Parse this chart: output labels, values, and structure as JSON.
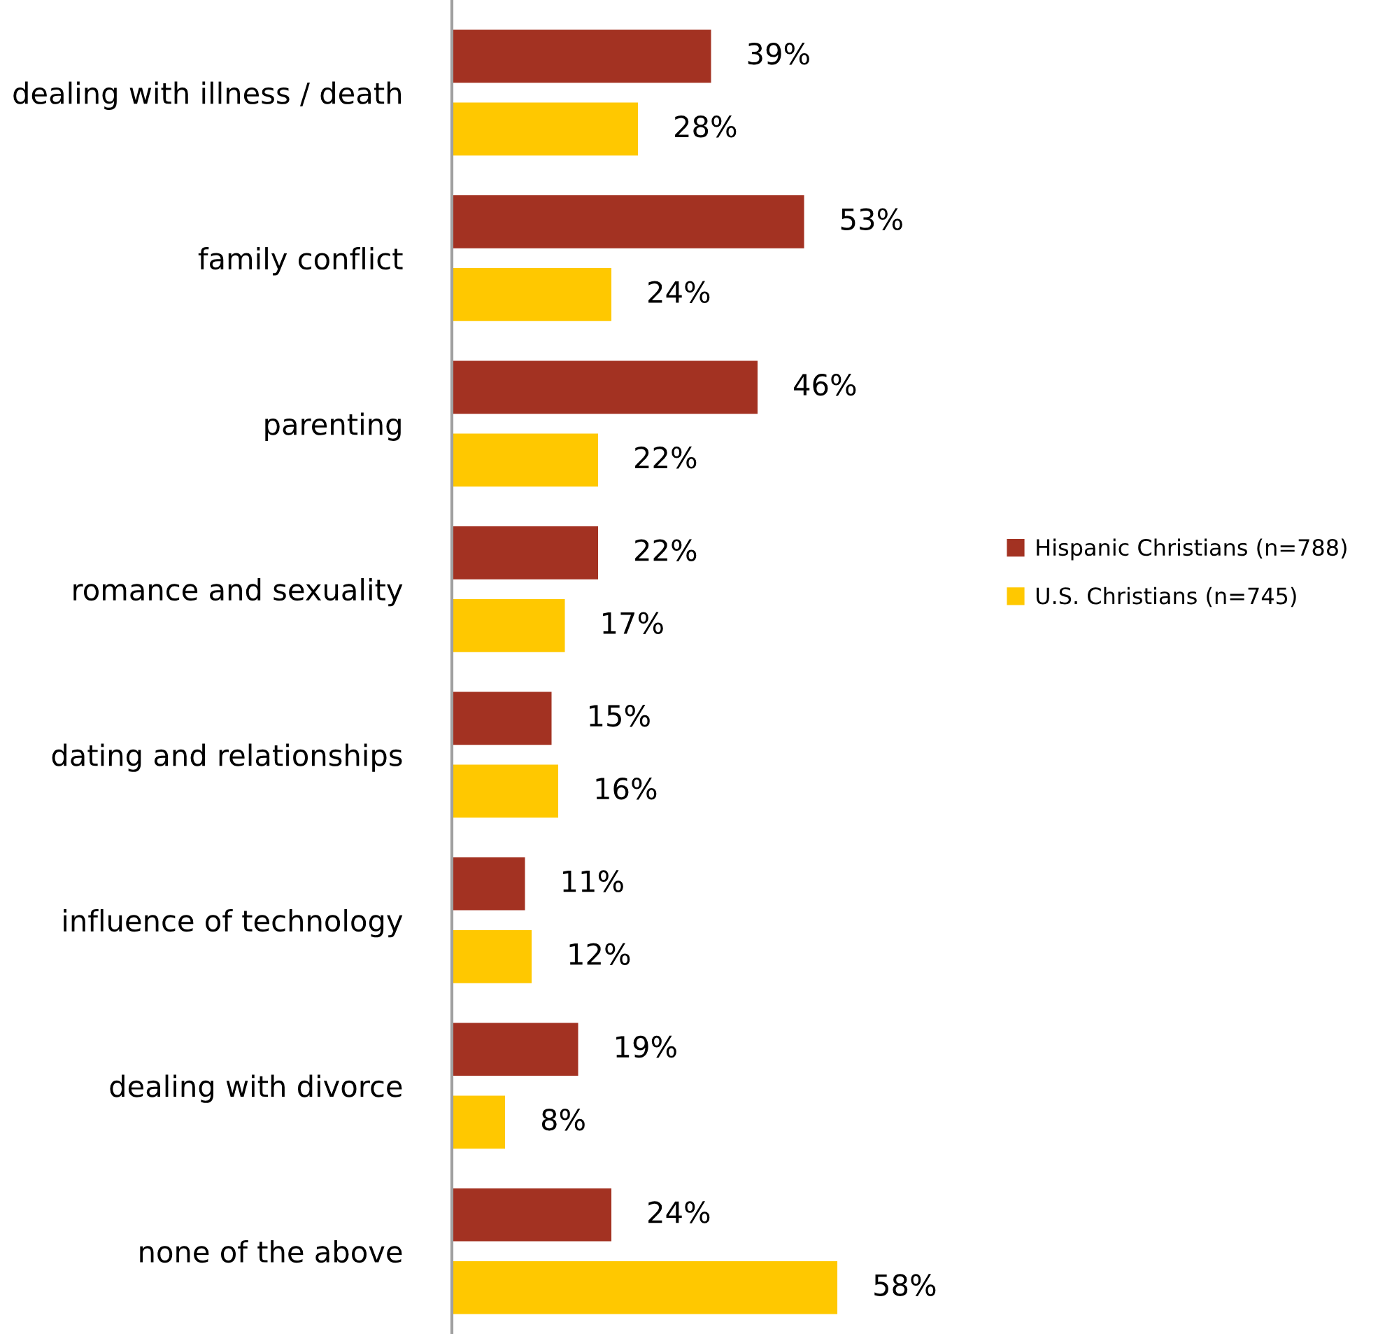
{
  "chart_data": {
    "type": "bar",
    "orientation": "horizontal",
    "categories": [
      "dealing with illness / death",
      "family conflict",
      "parenting",
      "romance and sexuality",
      "dating and relationships",
      "influence of technology",
      "dealing with divorce",
      "none of the above"
    ],
    "series": [
      {
        "name": "Hispanic Christians (n=788)",
        "color": "#a33222",
        "values": [
          39,
          53,
          46,
          22,
          15,
          11,
          19,
          24
        ],
        "value_labels": [
          "39%",
          "53%",
          "46%",
          "22%",
          "15%",
          "11%",
          "19%",
          "24%"
        ]
      },
      {
        "name": "U.S. Christians (n=745)",
        "color": "#ffc800",
        "values": [
          28,
          24,
          22,
          17,
          16,
          12,
          8,
          58
        ],
        "value_labels": [
          "28%",
          "24%",
          "22%",
          "17%",
          "16%",
          "12%",
          "8%",
          "58%"
        ]
      }
    ],
    "tick_labels": "y",
    "legend": "right",
    "grid": false
  }
}
